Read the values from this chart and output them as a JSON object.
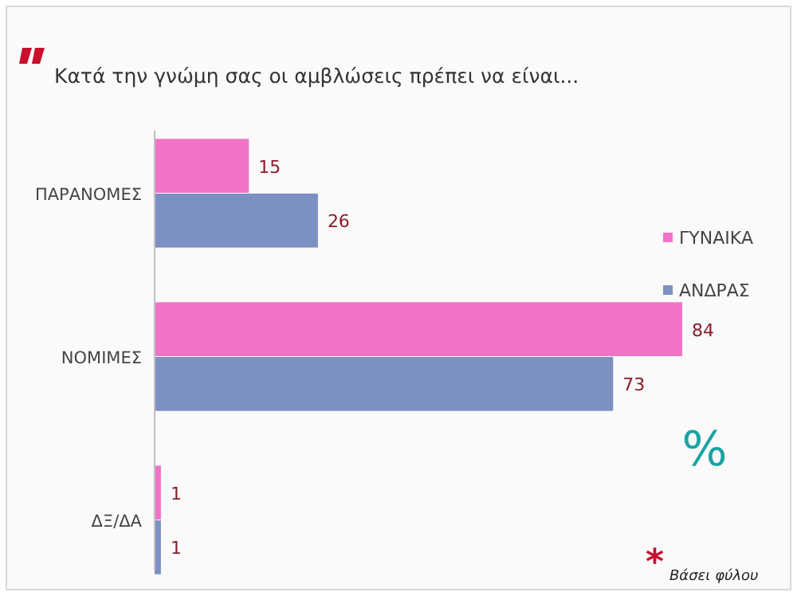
{
  "chart_data": {
    "type": "bar",
    "orientation": "horizontal",
    "title": "Κατά την γνώμη σας οι αμβλώσεις πρέπει να είναι...",
    "categories": [
      "ΠΑΡΑΝΟΜΕΣ",
      "ΝΟΜΙΜΕΣ",
      "ΔΞ/ΔΑ"
    ],
    "series": [
      {
        "name": "ΓΥΝΑΙΚΑ",
        "color": "#f272c8",
        "values": [
          15,
          84,
          1
        ]
      },
      {
        "name": "ΑΝΔΡΑΣ",
        "color": "#7d90c2",
        "values": [
          26,
          73,
          1
        ]
      }
    ],
    "data_labels": true,
    "legend": "right",
    "annotations": [
      "%",
      "*",
      "Βάσει φύλου"
    ]
  }
}
